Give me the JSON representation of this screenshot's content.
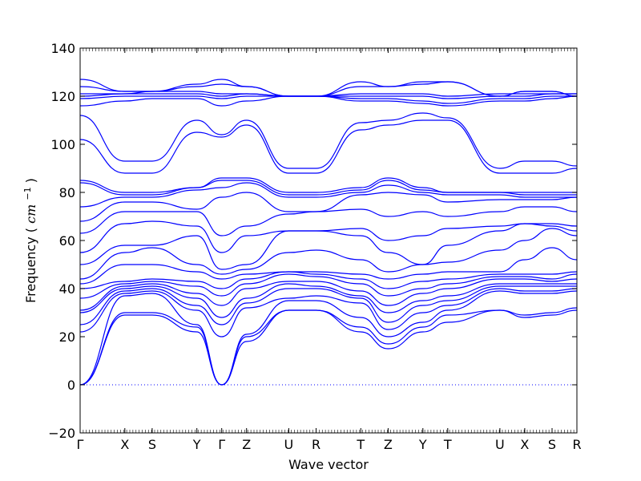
{
  "chart_data": {
    "type": "line",
    "xlabel": "Wave vector",
    "ylabel": "Frequency",
    "ylabel_unit": "cm",
    "ylabel_exponent": "−1",
    "ylim": [
      -20,
      140
    ],
    "yticks": [
      -20,
      0,
      20,
      40,
      60,
      80,
      100,
      120,
      140
    ],
    "grid": false,
    "zero_line": {
      "y": 0,
      "style": "dotted"
    },
    "line_color": "#0000ff",
    "kpoints": [
      {
        "label": "Γ",
        "x": 0.0
      },
      {
        "label": "X",
        "x": 0.09
      },
      {
        "label": "S",
        "x": 0.145
      },
      {
        "label": "Y",
        "x": 0.235
      },
      {
        "label": "Γ",
        "x": 0.285
      },
      {
        "label": "Z",
        "x": 0.335
      },
      {
        "label": "U",
        "x": 0.42
      },
      {
        "label": "R",
        "x": 0.475
      },
      {
        "label": "T",
        "x": 0.565
      },
      {
        "label": "Z",
        "x": 0.62
      },
      {
        "label": "Y",
        "x": 0.69
      },
      {
        "label": "T",
        "x": 0.74
      },
      {
        "label": "U",
        "x": 0.845
      },
      {
        "label": "X",
        "x": 0.895
      },
      {
        "label": "S",
        "x": 0.95
      },
      {
        "label": "R",
        "x": 1.0
      }
    ],
    "series": [
      {
        "values": [
          0,
          29,
          29,
          22,
          0,
          18,
          31,
          31,
          22,
          15,
          22,
          26,
          31,
          28,
          29,
          31
        ]
      },
      {
        "values": [
          0,
          30,
          30,
          24,
          0,
          20,
          31,
          31,
          24,
          17,
          24,
          29,
          31,
          29,
          30,
          32
        ]
      },
      {
        "values": [
          0,
          37,
          38,
          25,
          0,
          21,
          35,
          35,
          28,
          20,
          26,
          31,
          39,
          38,
          38,
          39
        ]
      },
      {
        "values": [
          22,
          38,
          39,
          31,
          20,
          32,
          36,
          37,
          34,
          23,
          30,
          33,
          40,
          39,
          39,
          40
        ]
      },
      {
        "values": [
          25,
          39,
          40,
          33,
          25,
          34,
          40,
          40,
          36,
          26,
          33,
          35,
          41,
          41,
          41,
          41
        ]
      },
      {
        "values": [
          30,
          40,
          41,
          36,
          28,
          36,
          42,
          41,
          37,
          30,
          35,
          37,
          42,
          42,
          42,
          42
        ]
      },
      {
        "values": [
          31,
          41,
          42,
          38,
          33,
          40,
          43,
          43,
          39,
          33,
          38,
          40,
          44,
          44,
          43,
          44
        ]
      },
      {
        "values": [
          36,
          42,
          43,
          41,
          37,
          42,
          46,
          45,
          42,
          37,
          40,
          42,
          45,
          45,
          44,
          46
        ]
      },
      {
        "values": [
          40,
          43,
          44,
          43,
          40,
          44,
          47,
          46,
          44,
          40,
          43,
          44,
          46,
          46,
          46,
          47
        ]
      },
      {
        "values": [
          42,
          50,
          50,
          47,
          44,
          46,
          47,
          47,
          46,
          44,
          46,
          47,
          47,
          52,
          57,
          52
        ]
      },
      {
        "values": [
          44,
          55,
          57,
          50,
          46,
          48,
          55,
          56,
          52,
          47,
          50,
          51,
          56,
          60,
          65,
          62
        ]
      },
      {
        "values": [
          50,
          58,
          58,
          62,
          48,
          50,
          64,
          64,
          62,
          55,
          50,
          58,
          64,
          67,
          66,
          64
        ]
      },
      {
        "values": [
          55,
          67,
          68,
          66,
          55,
          62,
          64,
          64,
          65,
          60,
          62,
          65,
          66,
          67,
          67,
          66
        ]
      },
      {
        "values": [
          63,
          72,
          72,
          72,
          62,
          66,
          71,
          72,
          73,
          70,
          72,
          70,
          72,
          74,
          74,
          72
        ]
      },
      {
        "values": [
          68,
          76,
          76,
          73,
          78,
          80,
          72,
          72,
          79,
          80,
          79,
          76,
          77,
          77,
          77,
          78
        ]
      },
      {
        "values": [
          74,
          78,
          78,
          81,
          82,
          84,
          78,
          78,
          80,
          83,
          80,
          79,
          79,
          78,
          78,
          78
        ]
      },
      {
        "values": [
          84,
          79,
          79,
          82,
          85,
          85,
          79,
          79,
          81,
          85,
          81,
          80,
          80,
          79,
          79,
          79
        ]
      },
      {
        "values": [
          85,
          80,
          80,
          82,
          86,
          86,
          80,
          80,
          82,
          86,
          82,
          80,
          80,
          80,
          80,
          80
        ]
      },
      {
        "values": [
          102,
          88,
          88,
          105,
          103,
          108,
          88,
          88,
          106,
          108,
          110,
          110,
          88,
          88,
          88,
          90
        ]
      },
      {
        "values": [
          112,
          93,
          93,
          110,
          104,
          110,
          90,
          90,
          109,
          110,
          113,
          111,
          90,
          93,
          93,
          91
        ]
      },
      {
        "values": [
          116,
          118,
          119,
          119,
          116,
          118,
          120,
          120,
          118,
          118,
          117,
          116,
          118,
          118,
          119,
          120
        ]
      },
      {
        "values": [
          119,
          120,
          120,
          120,
          119,
          120,
          120,
          120,
          119,
          119,
          118,
          117,
          119,
          119,
          120,
          120
        ]
      },
      {
        "values": [
          120,
          121,
          121,
          121,
          120,
          121,
          120,
          120,
          120,
          120,
          120,
          119,
          120,
          120,
          121,
          121
        ]
      },
      {
        "values": [
          121,
          121,
          122,
          122,
          121,
          121,
          120,
          120,
          121,
          121,
          121,
          120,
          121,
          121,
          121,
          121
        ]
      },
      {
        "values": [
          124,
          122,
          122,
          124,
          125,
          124,
          120,
          120,
          124,
          124,
          125,
          126,
          120,
          122,
          122,
          120
        ]
      },
      {
        "values": [
          127,
          122,
          122,
          125,
          127,
          124,
          120,
          120,
          126,
          124,
          126,
          126,
          120,
          122,
          122,
          120
        ]
      }
    ]
  }
}
